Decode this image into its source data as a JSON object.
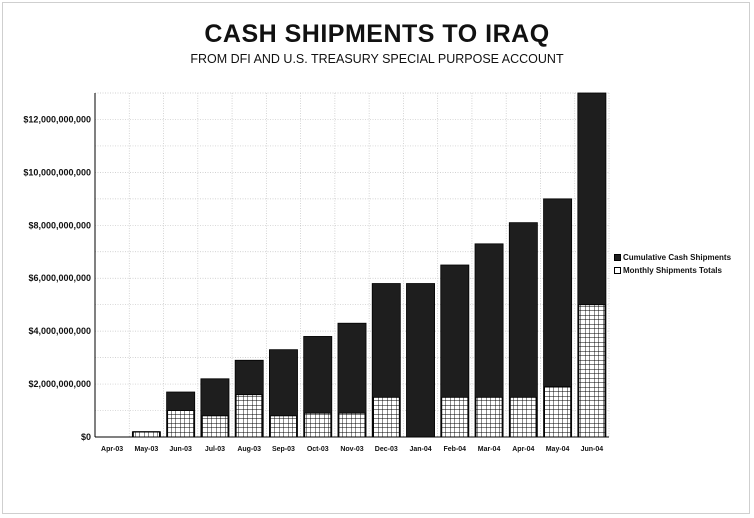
{
  "chart_data": {
    "type": "bar",
    "title": "CASH SHIPMENTS TO IRAQ",
    "subtitle": "FROM DFI AND U.S. TREASURY SPECIAL PURPOSE ACCOUNT",
    "xlabel": "",
    "ylabel": "",
    "ylim": [
      0,
      13000000000
    ],
    "yticks": [
      0,
      2000000000,
      4000000000,
      6000000000,
      8000000000,
      10000000000,
      12000000000
    ],
    "ytick_labels": [
      "$0",
      "$2,000,000,000",
      "$4,000,000,000",
      "$6,000,000,000",
      "$8,000,000,000",
      "$10,000,000,000",
      "$12,000,000,000"
    ],
    "grid": true,
    "legend_position": "right",
    "categories": [
      "Apr-03",
      "May-03",
      "Jun-03",
      "Jul-03",
      "Aug-03",
      "Sep-03",
      "Oct-03",
      "Nov-03",
      "Dec-03",
      "Jan-04",
      "Feb-04",
      "Mar-04",
      "Apr-04",
      "May-04",
      "Jun-04"
    ],
    "series": [
      {
        "name": "Cumulative Cash Shipments",
        "color": "#1e1e1e",
        "values": [
          0,
          200000000,
          1700000000,
          2200000000,
          2900000000,
          3300000000,
          3800000000,
          4300000000,
          5800000000,
          5800000000,
          6500000000,
          7300000000,
          8100000000,
          9000000000,
          13000000000
        ]
      },
      {
        "name": "Monthly Shipments Totals",
        "color": "#ffffff",
        "values": [
          0,
          200000000,
          1000000000,
          800000000,
          1600000000,
          800000000,
          900000000,
          900000000,
          1500000000,
          0,
          1500000000,
          1500000000,
          1500000000,
          1900000000,
          5000000000
        ]
      }
    ]
  }
}
